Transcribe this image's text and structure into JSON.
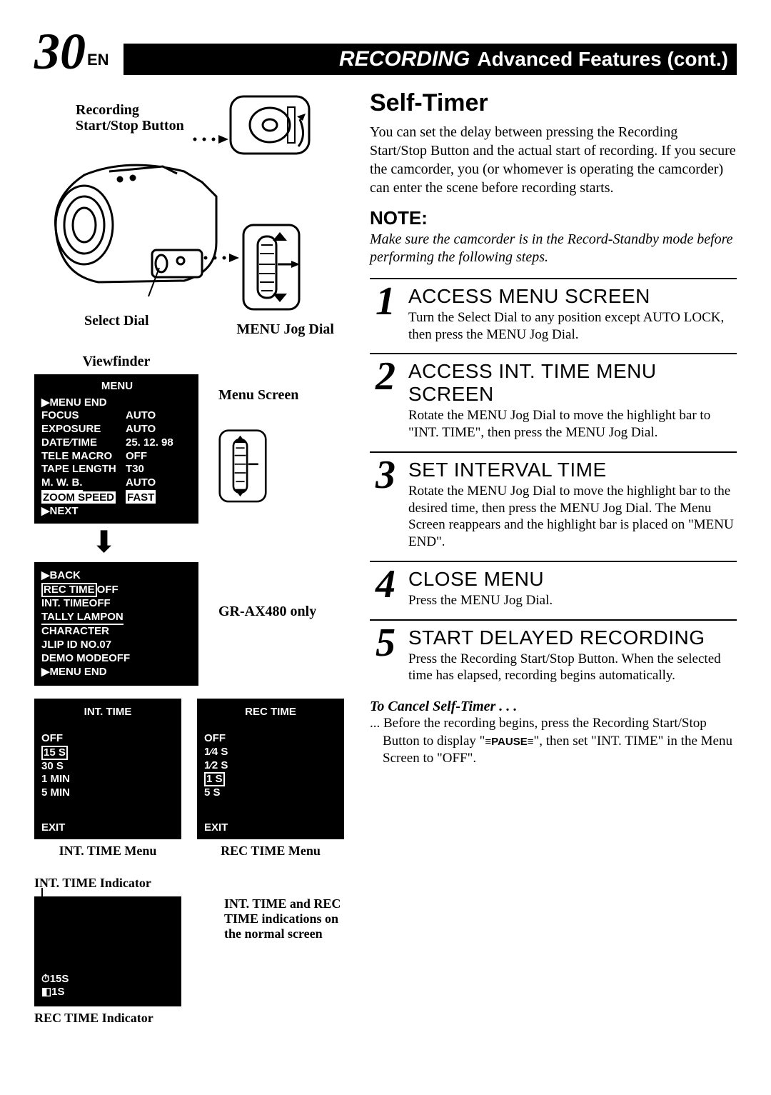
{
  "page_number": "30",
  "page_lang": "EN",
  "header_recording": "RECORDING",
  "header_advanced": "Advanced Features (cont.)",
  "labels": {
    "rec_button": "Recording Start/Stop Button",
    "select_dial": "Select Dial",
    "menu_jog": "MENU Jog Dial",
    "viewfinder": "Viewfinder",
    "menu_screen": "Menu Screen",
    "grax": "GR-AX480 only",
    "int_time_menu": "INT. TIME Menu",
    "rec_time_menu": "REC TIME Menu",
    "int_time_ind": "INT. TIME Indicator",
    "rec_time_ind": "REC TIME Indicator",
    "ind_side": "INT. TIME and REC TIME indications on the normal screen"
  },
  "menu1": {
    "title": "MENU",
    "rows": [
      {
        "k": "▶MENU  END",
        "v": ""
      },
      {
        "k": "FOCUS",
        "v": "AUTO"
      },
      {
        "k": "EXPOSURE",
        "v": "AUTO"
      },
      {
        "k": "DATE⁄TIME",
        "v": "25. 12. 98"
      },
      {
        "k": "TELE  MACRO",
        "v": "OFF"
      },
      {
        "k": "TAPE  LENGTH",
        "v": "T30"
      },
      {
        "k": "M. W. B.",
        "v": "AUTO",
        "under": true
      },
      {
        "k": "ZOOM SPEED",
        "v": "FAST",
        "hl": true
      },
      {
        "k": "▶NEXT",
        "v": ""
      }
    ]
  },
  "menu2": {
    "rows": [
      {
        "k": "▶BACK",
        "v": ""
      },
      {
        "k": "REC  TIME",
        "v": "OFF",
        "hl": true
      },
      {
        "k": "INT.  TIME",
        "v": "OFF"
      },
      {
        "k": "TALLY  LAMP",
        "v": "ON",
        "under": true
      },
      {
        "k": "CHARACTER",
        "v": ""
      },
      {
        "k": "JLIP  ID  NO.",
        "v": "07"
      },
      {
        "k": "DEMO  MODE",
        "v": "OFF"
      },
      {
        "k": "",
        "v": ""
      },
      {
        "k": "▶MENU  END",
        "v": ""
      }
    ]
  },
  "int_menu": {
    "title": "INT.  TIME",
    "items": [
      "OFF",
      "15 S",
      "30 S",
      "1  MIN",
      "5  MIN"
    ],
    "hl_index": 1,
    "exit": "EXIT"
  },
  "rec_menu": {
    "title": "REC  TIME",
    "items": [
      "OFF",
      "1⁄4 S",
      "1⁄2 S",
      "1  S",
      "5  S"
    ],
    "hl_index": 3,
    "exit": "EXIT"
  },
  "indicator": {
    "l1": "⏱15S",
    "l2": "◧1S"
  },
  "self_timer_h": "Self-Timer",
  "self_timer_body": "You can set the delay between pressing the Recording Start/Stop Button and the actual start of recording. If you secure the camcorder, you (or whomever is operating the camcorder) can enter the scene before recording starts.",
  "note_h": "NOTE:",
  "note_body": "Make sure the camcorder is in the Record-Standby mode before performing the following steps.",
  "steps": [
    {
      "n": "1",
      "title": "ACCESS MENU SCREEN",
      "text": "Turn the Select Dial to any position except AUTO LOCK, then press the MENU Jog Dial."
    },
    {
      "n": "2",
      "title": "ACCESS INT. TIME MENU SCREEN",
      "text": "Rotate the MENU Jog Dial to move the highlight bar to \"INT. TIME\", then press the MENU Jog Dial."
    },
    {
      "n": "3",
      "title": "SET INTERVAL TIME",
      "text": "Rotate the MENU Jog Dial to move the highlight bar to the desired time, then press the MENU Jog Dial. The Menu Screen reappears and the highlight bar is placed on \"MENU END\"."
    },
    {
      "n": "4",
      "title": "CLOSE MENU",
      "text": "Press the MENU Jog Dial."
    },
    {
      "n": "5",
      "title": "START DELAYED RECORDING",
      "text": "Press the Recording Start/Stop Button. When the selected time has elapsed, recording begins automatically."
    }
  ],
  "cancel_h": "To Cancel Self-Timer . . .",
  "cancel_body_pre": "... Before the recording begins, press the Recording Start/Stop Button to display \"",
  "cancel_pause": "≡PAUSE≡",
  "cancel_body_post": "\", then set \"INT. TIME\" in the Menu Screen to \"OFF\"."
}
